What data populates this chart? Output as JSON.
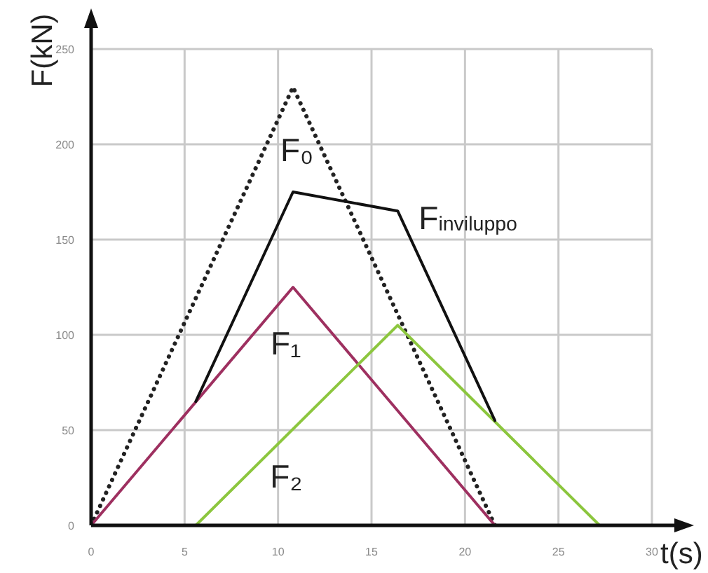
{
  "chart_data": {
    "type": "line",
    "xlabel": "t(s)",
    "ylabel": "F(kN)",
    "xlim": [
      0,
      30
    ],
    "ylim": [
      0,
      250
    ],
    "xticks": [
      0,
      5,
      10,
      15,
      20,
      25,
      30
    ],
    "yticks": [
      0,
      50,
      100,
      150,
      200,
      250
    ],
    "grid": true,
    "marker": "none",
    "line_style": "solid",
    "series": [
      {
        "name": "F₀",
        "color": "#222222",
        "line_style": "dotted",
        "x": [
          0,
          10.8,
          21.6
        ],
        "values": [
          0,
          230,
          0
        ]
      },
      {
        "name": "F₁",
        "color": "#9e3060",
        "x": [
          0,
          10.8,
          21.6
        ],
        "values": [
          0,
          125,
          0
        ]
      },
      {
        "name": "F₂",
        "color": "#8cc63e",
        "x": [
          5.6,
          16.4,
          27.2
        ],
        "values": [
          0,
          105,
          0
        ]
      },
      {
        "name": "F$_{inviluppo}$",
        "color": "#111111",
        "x": [
          5.6,
          10.8,
          16.4,
          21.6
        ],
        "values": [
          65,
          175,
          165,
          55
        ]
      }
    ]
  }
}
